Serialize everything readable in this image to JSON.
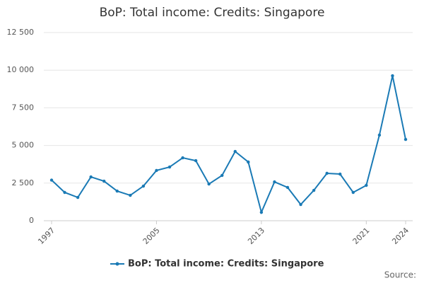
{
  "chart_data": {
    "type": "line",
    "title": "BoP: Total income: Credits: Singapore",
    "x": [
      1997,
      1998,
      1999,
      2000,
      2001,
      2002,
      2003,
      2004,
      2005,
      2006,
      2007,
      2008,
      2009,
      2010,
      2011,
      2012,
      2013,
      2014,
      2015,
      2016,
      2017,
      2018,
      2019,
      2020,
      2021,
      2022,
      2023,
      2024
    ],
    "series": [
      {
        "name": "BoP: Total income: Credits: Singapore",
        "color": "#1a7ab5",
        "values": [
          2700,
          1880,
          1550,
          2910,
          2630,
          1970,
          1690,
          2300,
          3340,
          3570,
          4180,
          3990,
          2440,
          3010,
          4600,
          3900,
          560,
          2580,
          2210,
          1080,
          2020,
          3150,
          3100,
          1880,
          2350,
          5690,
          9630,
          5400
        ]
      }
    ],
    "xlim": [
      1997,
      2024
    ],
    "xticks": [
      1997,
      2005,
      2013,
      2021,
      2024
    ],
    "ylim": [
      0,
      12500
    ],
    "yticks": [
      0,
      {
        "value": 2500,
        "label": "2 500"
      },
      {
        "value": 5000,
        "label": "5 000"
      },
      {
        "value": 7500,
        "label": "7 500"
      },
      {
        "value": 10000,
        "label": "10 000"
      },
      {
        "value": 12500,
        "label": "12 500"
      }
    ],
    "grid": true,
    "legend": "bottom",
    "source": "Source:"
  }
}
